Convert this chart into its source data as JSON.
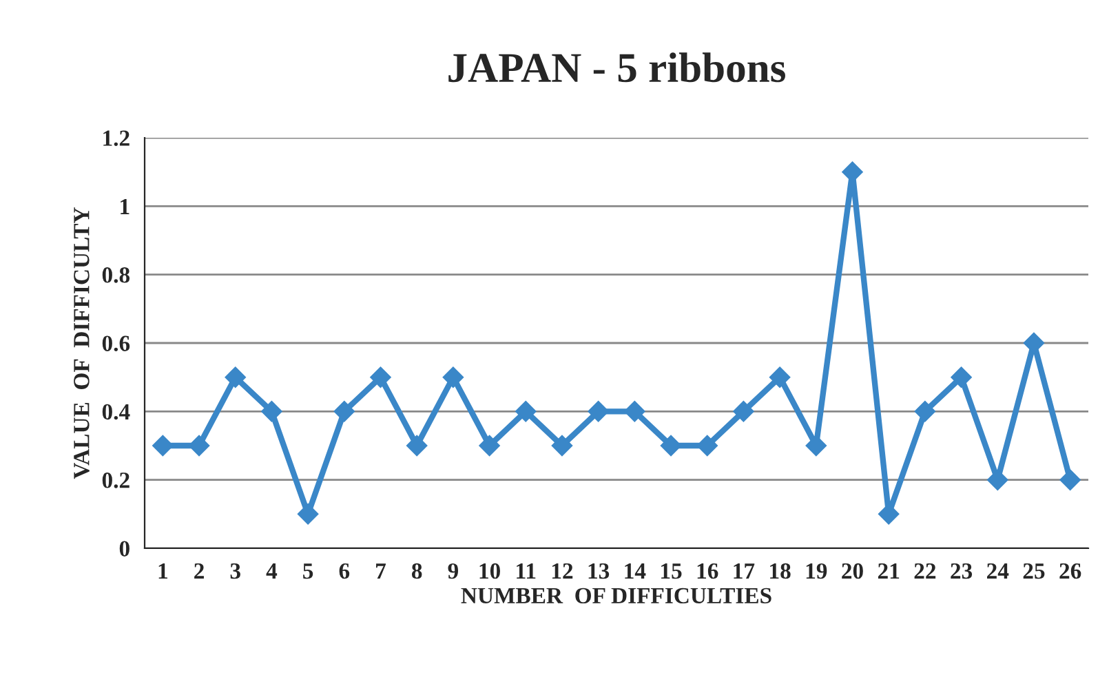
{
  "chart_data": {
    "type": "line",
    "title": "JAPAN - 5 ribbons",
    "xlabel": "NUMBER  OF DIFFICULTIES",
    "ylabel": "VALUE  OF  DIFFICULTY",
    "categories": [
      "1",
      "2",
      "3",
      "4",
      "5",
      "6",
      "7",
      "8",
      "9",
      "10",
      "11",
      "12",
      "13",
      "14",
      "15",
      "16",
      "17",
      "18",
      "19",
      "20",
      "21",
      "22",
      "23",
      "24",
      "25",
      "26"
    ],
    "series": [
      {
        "color": "#3a87c8",
        "values": [
          0.3,
          0.3,
          0.5,
          0.4,
          0.1,
          0.4,
          0.5,
          0.3,
          0.5,
          0.3,
          0.4,
          0.3,
          0.4,
          0.4,
          0.3,
          0.3,
          0.4,
          0.5,
          0.3,
          1.1,
          0.1,
          0.4,
          0.5,
          0.2,
          0.6,
          0.2
        ]
      }
    ],
    "ylim": [
      0,
      1.2
    ],
    "yticks": [
      0,
      0.2,
      0.4,
      0.6,
      0.8,
      1,
      1.2
    ],
    "grid": "y",
    "marker": "diamond",
    "line_style": "solid",
    "legend": false
  }
}
